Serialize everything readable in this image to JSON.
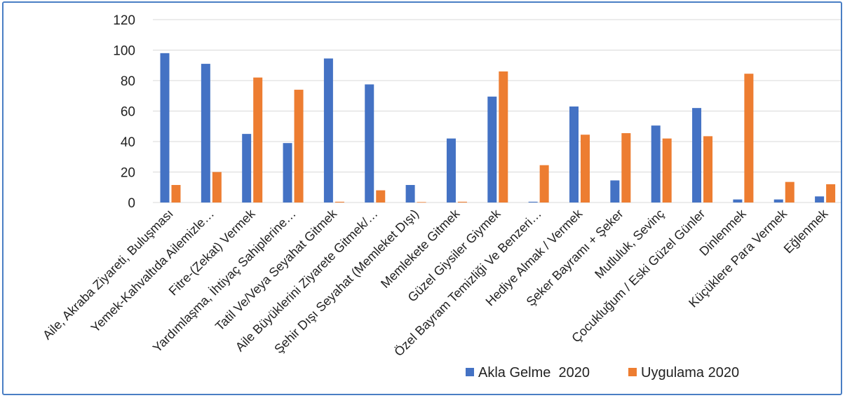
{
  "colors": {
    "series_1": "#4472c4",
    "series_2": "#ed7d31",
    "grid": "#d9d9d9",
    "frame": "#4a7ec4"
  },
  "chart_data": {
    "type": "bar",
    "categories": [
      "Aile, Akraba Ziyareti, Buluşması",
      "Yemek-Kahvaltıda Ailemizle…",
      "Fitre-(Zekat) Vermek",
      "Yardımlaşma, İhtiyaç Sahiplerine…",
      "Tatil Ve/Veya Seyahat Gitmek",
      "Aile Büyüklerini Ziyarete Gitmek/…",
      "Şehir Dışı Seyahat (Memleket Dışı)",
      "Memlekete Gitmek",
      "Güzel Giysiler Giymek",
      "Özel Bayram Temizliği Ve Benzeri…",
      "Hediye Almak / Vermek",
      "Şeker Bayramı + Şeker",
      "Mutluluk, Sevinç",
      "Çocukluğum / Eski Güzel Günler",
      "Dinlenmek",
      "Küçüklere Para Vermek",
      "Eğlenmek"
    ],
    "series": [
      {
        "name": "Akla Gelme  2020",
        "values": [
          98,
          91,
          45,
          39,
          94.5,
          77.5,
          11.5,
          42,
          69.5,
          0.5,
          63,
          14.5,
          50.5,
          62,
          2,
          2,
          4
        ]
      },
      {
        "name": "Uygulama 2020",
        "values": [
          11.5,
          20,
          82,
          74,
          0.5,
          8,
          0.3,
          0.5,
          86,
          24.5,
          44.5,
          45.5,
          42,
          43.5,
          84.5,
          13.5,
          12
        ]
      }
    ],
    "y_ticks": [
      "0",
      "20",
      "40",
      "60",
      "80",
      "100",
      "120"
    ],
    "ylim": [
      0,
      120
    ],
    "grid": true,
    "legend_position": "bottom-right",
    "title": "",
    "xlabel": "",
    "ylabel": ""
  }
}
